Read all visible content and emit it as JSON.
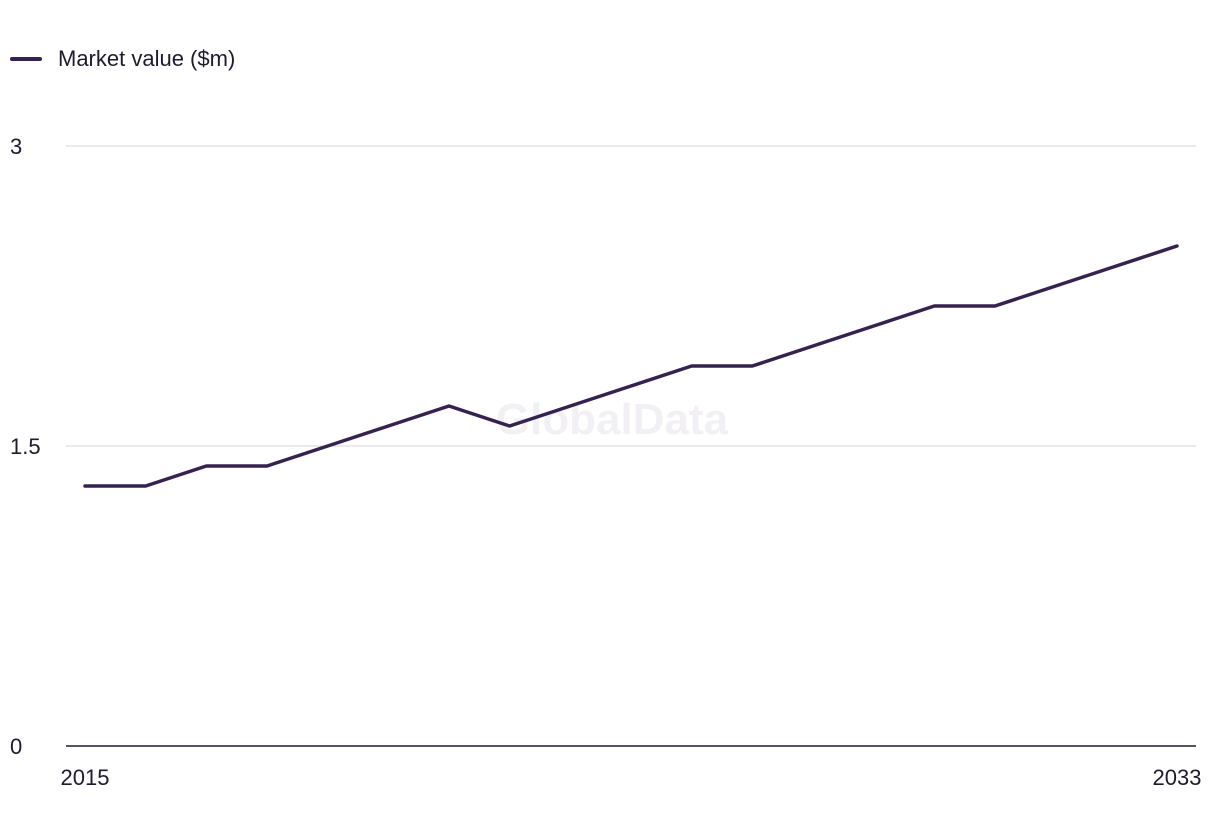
{
  "chart_data": {
    "type": "line",
    "title": "",
    "xlabel": "",
    "ylabel": "",
    "x": [
      2015,
      2016,
      2017,
      2018,
      2019,
      2020,
      2021,
      2022,
      2023,
      2024,
      2025,
      2026,
      2027,
      2028,
      2029,
      2030,
      2031,
      2032,
      2033
    ],
    "series": [
      {
        "name": "Market value ($m)",
        "color": "#35224f",
        "values": [
          1.3,
          1.3,
          1.4,
          1.4,
          1.5,
          1.6,
          1.7,
          1.6,
          1.7,
          1.8,
          1.9,
          1.9,
          2.0,
          2.1,
          2.2,
          2.2,
          2.3,
          2.4,
          2.5
        ]
      }
    ],
    "ylim": [
      0,
      3
    ],
    "y_ticks": [
      "0",
      "1.5",
      "3"
    ],
    "x_ticks": [
      "2015",
      "2033"
    ],
    "grid": true,
    "legend_position": "top-left",
    "watermark": "GlobalData"
  }
}
